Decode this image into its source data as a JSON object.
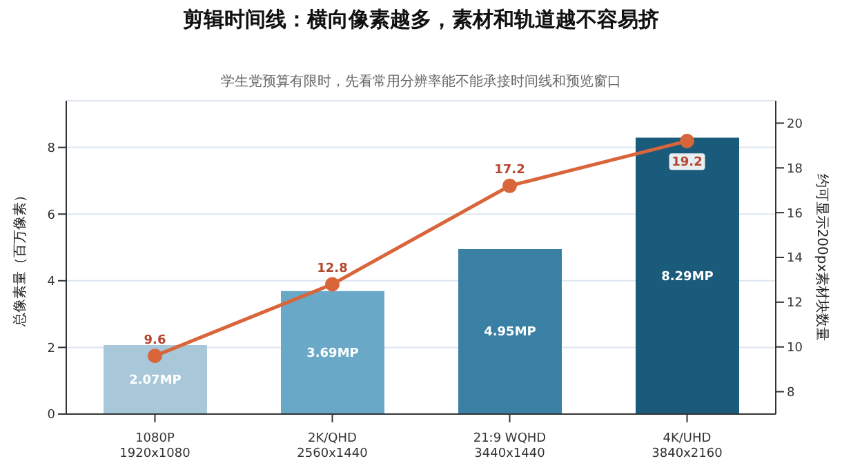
{
  "chart_data": {
    "type": "bar",
    "title": "剪辑时间线：横向像素越多，素材和轨道越不容易挤",
    "subtitle": "学生党预算有限时，先看常用分辨率能不能承接时间线和预览窗口",
    "ylabel": "总像素量（百万像素）",
    "y2label": "约可显示200px素材块数量",
    "categories": [
      "1080P\n1920x1080",
      "2K/QHD\n2560x1440",
      "21:9 WQHD\n3440x1440",
      "4K/UHD\n3840x2160"
    ],
    "series": [
      {
        "values": [
          2.07,
          3.69,
          4.95,
          8.29
        ],
        "colors": [
          "#a8c8da",
          "#6aa8c8",
          "#3a80a5",
          "#1a5a7a"
        ],
        "value_labels": [
          "2.07MP",
          "3.69MP",
          "4.95MP",
          "8.29MP"
        ]
      },
      {
        "type": "line",
        "axis": "y2",
        "color": "#d9653b",
        "values": [
          9.6,
          12.8,
          17.2,
          19.2
        ],
        "value_labels": [
          "9.6",
          "12.8",
          "17.2",
          "19.2"
        ]
      }
    ],
    "ylim": [
      0,
      9.4
    ],
    "yticks": [
      0,
      2,
      4,
      6,
      8
    ],
    "y2lim": [
      7,
      21
    ],
    "y2ticks": [
      8,
      10,
      12,
      14,
      16,
      18,
      20
    ],
    "grid": "y",
    "legend": false,
    "marker": "circle",
    "line_style": "solid"
  }
}
